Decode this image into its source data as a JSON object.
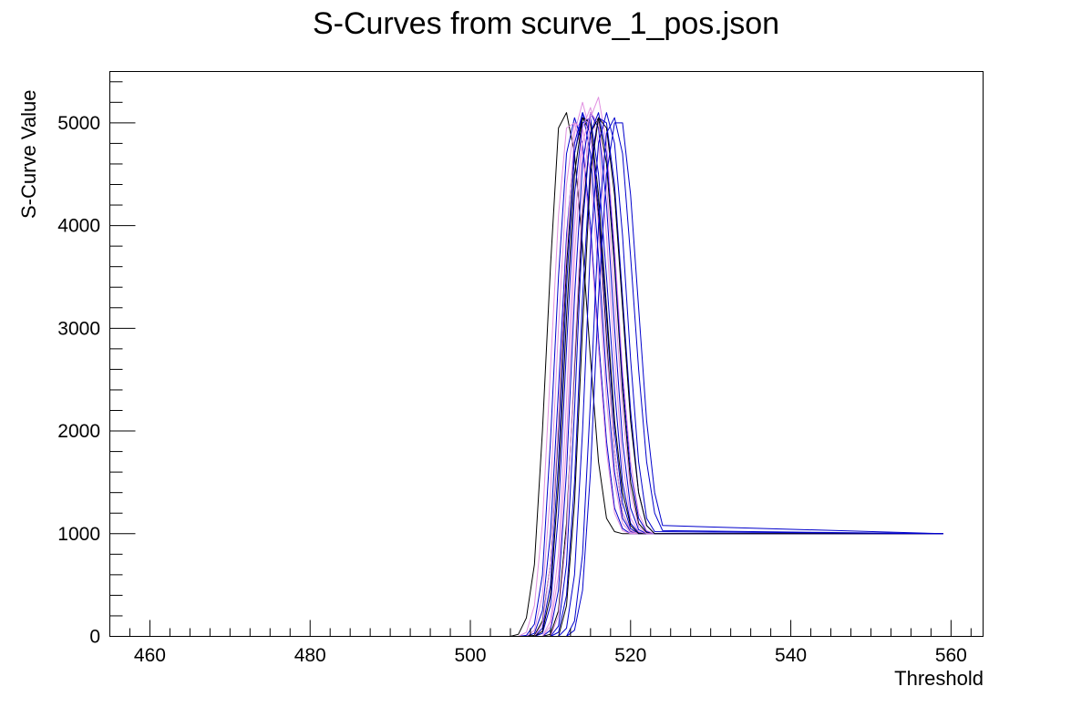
{
  "chart_data": {
    "type": "line",
    "title": "S-Curves from scurve_1_pos.json",
    "xlabel": "Threshold",
    "ylabel": "S-Curve Value",
    "xlim": [
      455,
      564
    ],
    "ylim": [
      0,
      5500
    ],
    "xticks_major": [
      460,
      480,
      500,
      520,
      540,
      560
    ],
    "xtick_labels": [
      "460",
      "480",
      "500",
      "520",
      "540",
      "560"
    ],
    "yticks_major": [
      0,
      1000,
      2000,
      3000,
      4000,
      5000
    ],
    "ytick_labels": [
      "0",
      "1000",
      "2000",
      "3000",
      "4000",
      "5000"
    ],
    "grid": false,
    "legend": "none",
    "colors": {
      "black": "#000000",
      "blue": "#0000cc",
      "pink": "#e08fe0"
    },
    "series": [
      {
        "color": "#000000",
        "x": [
          460,
          505,
          506,
          507,
          508,
          509,
          510,
          511,
          512,
          513,
          514,
          515,
          516,
          517,
          518,
          519,
          520,
          521,
          522,
          523,
          524,
          559
        ],
        "y": [
          0,
          0,
          20,
          180,
          700,
          2000,
          3600,
          4950,
          5100,
          4700,
          3800,
          2700,
          1700,
          1150,
          1020,
          1000,
          1000,
          1000,
          1000,
          1000,
          1000,
          1000
        ]
      },
      {
        "color": "#0000cc",
        "x": [
          460,
          506,
          507,
          508,
          509,
          510,
          511,
          512,
          513,
          514,
          515,
          516,
          517,
          518,
          519,
          520,
          521,
          522,
          523,
          524,
          559
        ],
        "y": [
          0,
          0,
          10,
          120,
          600,
          1900,
          3500,
          4700,
          5050,
          4800,
          4000,
          2900,
          1900,
          1250,
          1050,
          1000,
          1000,
          1000,
          1000,
          1000,
          1000
        ]
      },
      {
        "color": "#e08fe0",
        "x": [
          460,
          506,
          507,
          508,
          509,
          510,
          511,
          512,
          513,
          514,
          515,
          516,
          517,
          518,
          519,
          520,
          521,
          522,
          523,
          559
        ],
        "y": [
          0,
          0,
          40,
          300,
          1100,
          2600,
          4100,
          4950,
          5000,
          4700,
          3900,
          2800,
          1800,
          1200,
          1030,
          1000,
          1000,
          1000,
          1000,
          1000
        ]
      },
      {
        "color": "#0000cc",
        "x": [
          460,
          507,
          508,
          509,
          510,
          511,
          512,
          513,
          514,
          515,
          516,
          517,
          518,
          519,
          520,
          521,
          522,
          523,
          559
        ],
        "y": [
          0,
          0,
          30,
          250,
          1000,
          2400,
          3900,
          4800,
          5100,
          4700,
          3700,
          2500,
          1600,
          1150,
          1020,
          1000,
          1000,
          1000,
          1000
        ]
      },
      {
        "color": "#e08fe0",
        "x": [
          460,
          507,
          508,
          509,
          510,
          511,
          512,
          513,
          514,
          515,
          516,
          517,
          518,
          519,
          520,
          521,
          522,
          523,
          559
        ],
        "y": [
          0,
          0,
          60,
          400,
          1400,
          3000,
          4400,
          5000,
          4950,
          4500,
          3500,
          2300,
          1500,
          1100,
          1010,
          1000,
          1000,
          1000,
          1000
        ]
      },
      {
        "color": "#000000",
        "x": [
          460,
          507,
          508,
          509,
          510,
          511,
          512,
          513,
          514,
          515,
          516,
          517,
          518,
          519,
          520,
          521,
          522,
          523,
          559
        ],
        "y": [
          0,
          0,
          10,
          150,
          700,
          2000,
          3600,
          4700,
          5050,
          4900,
          4100,
          2900,
          1800,
          1200,
          1030,
          1000,
          1000,
          1000,
          1000
        ]
      },
      {
        "color": "#0000cc",
        "x": [
          460,
          508,
          509,
          510,
          511,
          512,
          513,
          514,
          515,
          516,
          517,
          518,
          519,
          520,
          521,
          522,
          523,
          559
        ],
        "y": [
          0,
          0,
          80,
          500,
          1700,
          3400,
          4700,
          5100,
          4900,
          4200,
          3100,
          2000,
          1300,
          1050,
          1000,
          1000,
          1000,
          1000
        ]
      },
      {
        "color": "#e08fe0",
        "x": [
          460,
          508,
          509,
          510,
          511,
          512,
          513,
          514,
          515,
          516,
          517,
          518,
          519,
          520,
          521,
          522,
          523,
          559
        ],
        "y": [
          0,
          0,
          120,
          700,
          2100,
          3800,
          4900,
          5200,
          4900,
          4000,
          2800,
          1800,
          1200,
          1030,
          1000,
          1000,
          1000,
          1000
        ]
      },
      {
        "color": "#0000cc",
        "x": [
          460,
          508,
          509,
          510,
          511,
          512,
          513,
          514,
          515,
          516,
          517,
          518,
          519,
          520,
          521,
          522,
          523,
          559
        ],
        "y": [
          0,
          0,
          30,
          300,
          1200,
          2800,
          4300,
          5000,
          5050,
          4500,
          3500,
          2400,
          1500,
          1100,
          1010,
          1000,
          1000,
          1000
        ]
      },
      {
        "color": "#000000",
        "x": [
          460,
          508,
          509,
          510,
          511,
          512,
          513,
          514,
          515,
          516,
          517,
          518,
          519,
          520,
          521,
          522,
          523,
          559
        ],
        "y": [
          0,
          0,
          50,
          400,
          1500,
          3100,
          4500,
          5050,
          5000,
          4300,
          3200,
          2100,
          1400,
          1080,
          1000,
          1000,
          1000,
          1000
        ]
      },
      {
        "color": "#e08fe0",
        "x": [
          460,
          509,
          510,
          511,
          512,
          513,
          514,
          515,
          516,
          517,
          518,
          519,
          520,
          521,
          522,
          523,
          559
        ],
        "y": [
          0,
          0,
          150,
          800,
          2300,
          4000,
          4950,
          5150,
          4800,
          3900,
          2700,
          1700,
          1150,
          1020,
          1000,
          1000,
          1000
        ]
      },
      {
        "color": "#0000cc",
        "x": [
          460,
          509,
          510,
          511,
          512,
          513,
          514,
          515,
          516,
          517,
          518,
          519,
          520,
          521,
          522,
          523,
          559
        ],
        "y": [
          0,
          0,
          60,
          450,
          1600,
          3300,
          4600,
          5100,
          4950,
          4200,
          3000,
          1900,
          1250,
          1040,
          1000,
          1000,
          1000
        ]
      },
      {
        "color": "#000000",
        "x": [
          460,
          509,
          510,
          511,
          512,
          513,
          514,
          515,
          516,
          517,
          518,
          519,
          520,
          521,
          522,
          523,
          559
        ],
        "y": [
          0,
          0,
          20,
          250,
          1100,
          2600,
          4100,
          4900,
          5050,
          4600,
          3600,
          2400,
          1500,
          1100,
          1010,
          1000,
          1000
        ]
      },
      {
        "color": "#e08fe0",
        "x": [
          460,
          509,
          510,
          511,
          512,
          513,
          514,
          515,
          516,
          517,
          518,
          519,
          520,
          521,
          522,
          523,
          559
        ],
        "y": [
          0,
          0,
          100,
          600,
          1900,
          3700,
          4800,
          5100,
          5000,
          4400,
          3300,
          2200,
          1400,
          1070,
          1000,
          1000,
          1000
        ]
      },
      {
        "color": "#0000cc",
        "x": [
          460,
          510,
          511,
          512,
          513,
          514,
          515,
          516,
          517,
          518,
          519,
          520,
          521,
          522,
          523,
          559
        ],
        "y": [
          0,
          0,
          100,
          700,
          2200,
          4000,
          4900,
          5100,
          4700,
          3700,
          2500,
          1600,
          1150,
          1020,
          1000,
          1000
        ]
      },
      {
        "color": "#e08fe0",
        "x": [
          460,
          510,
          511,
          512,
          513,
          514,
          515,
          516,
          517,
          518,
          519,
          520,
          521,
          522,
          523,
          559
        ],
        "y": [
          0,
          0,
          200,
          1000,
          2700,
          4300,
          5050,
          5250,
          4800,
          3800,
          2600,
          1700,
          1200,
          1030,
          1000,
          1000
        ]
      },
      {
        "color": "#0000cc",
        "x": [
          460,
          510,
          511,
          512,
          513,
          514,
          515,
          516,
          517,
          518,
          519,
          520,
          521,
          522,
          523,
          559
        ],
        "y": [
          0,
          0,
          40,
          400,
          1500,
          3300,
          4600,
          5050,
          5000,
          4400,
          3300,
          2200,
          1400,
          1080,
          1000,
          1000
        ]
      },
      {
        "color": "#000000",
        "x": [
          460,
          511,
          512,
          513,
          514,
          515,
          516,
          517,
          518,
          519,
          520,
          521,
          522,
          523,
          559
        ],
        "y": [
          0,
          0,
          300,
          1300,
          3000,
          4500,
          5050,
          4950,
          4300,
          3200,
          2100,
          1400,
          1080,
          1000,
          1000
        ]
      },
      {
        "color": "#0000cc",
        "x": [
          460,
          511,
          512,
          513,
          514,
          515,
          516,
          517,
          518,
          519,
          520,
          521,
          522,
          523,
          559
        ],
        "y": [
          0,
          0,
          80,
          600,
          2000,
          3800,
          4800,
          5100,
          4800,
          3900,
          2700,
          1700,
          1150,
          1020,
          1000
        ]
      },
      {
        "color": "#0000cc",
        "x": [
          460,
          512,
          513,
          514,
          515,
          516,
          517,
          518,
          519,
          520,
          521,
          522,
          523,
          524,
          559
        ],
        "y": [
          0,
          0,
          150,
          800,
          2300,
          4000,
          4900,
          5050,
          4700,
          3700,
          2600,
          1700,
          1200,
          1030,
          1000
        ]
      },
      {
        "color": "#0000cc",
        "x": [
          460,
          512,
          513,
          514,
          515,
          516,
          517,
          518,
          519,
          520,
          521,
          522,
          523,
          524,
          559
        ],
        "y": [
          0,
          0,
          60,
          450,
          1600,
          3300,
          4500,
          5000,
          5000,
          4300,
          3200,
          2100,
          1400,
          1080,
          1000
        ]
      }
    ]
  }
}
